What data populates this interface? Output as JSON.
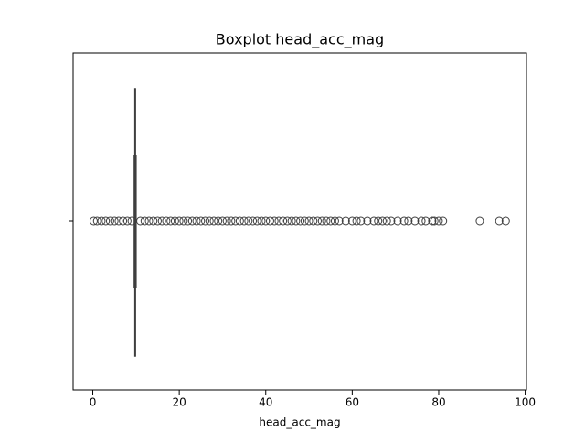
{
  "chart_data": {
    "type": "box",
    "title": "Boxplot head_acc_mag",
    "xlabel": "head_acc_mag",
    "xlim": [
      -4.55,
      100.3
    ],
    "xticks": [
      0,
      20,
      40,
      60,
      80,
      100
    ],
    "stats": {
      "whislo": 9.6,
      "q1": 9.75,
      "med": 9.8,
      "q3": 9.85,
      "whishi": 10.0
    },
    "fliers": [
      0.2,
      1,
      2,
      3,
      4,
      5,
      6,
      7,
      8,
      9,
      11,
      12,
      13,
      14,
      15,
      16,
      17,
      18,
      19,
      20,
      21,
      22,
      23,
      24,
      25,
      26,
      27,
      28,
      29,
      30,
      31,
      32,
      33,
      34,
      35,
      36,
      37,
      38,
      39,
      40,
      41,
      42,
      43,
      44,
      45,
      46,
      47,
      48,
      49,
      50,
      51,
      52,
      53,
      54,
      55,
      56,
      57,
      58.5,
      60,
      61,
      62,
      63.5,
      65,
      66,
      67,
      68,
      69,
      70.5,
      72,
      73,
      74.5,
      76,
      77,
      78.5,
      79,
      80,
      81,
      89.5,
      94,
      95.5
    ],
    "color": "#3f3f3f"
  }
}
